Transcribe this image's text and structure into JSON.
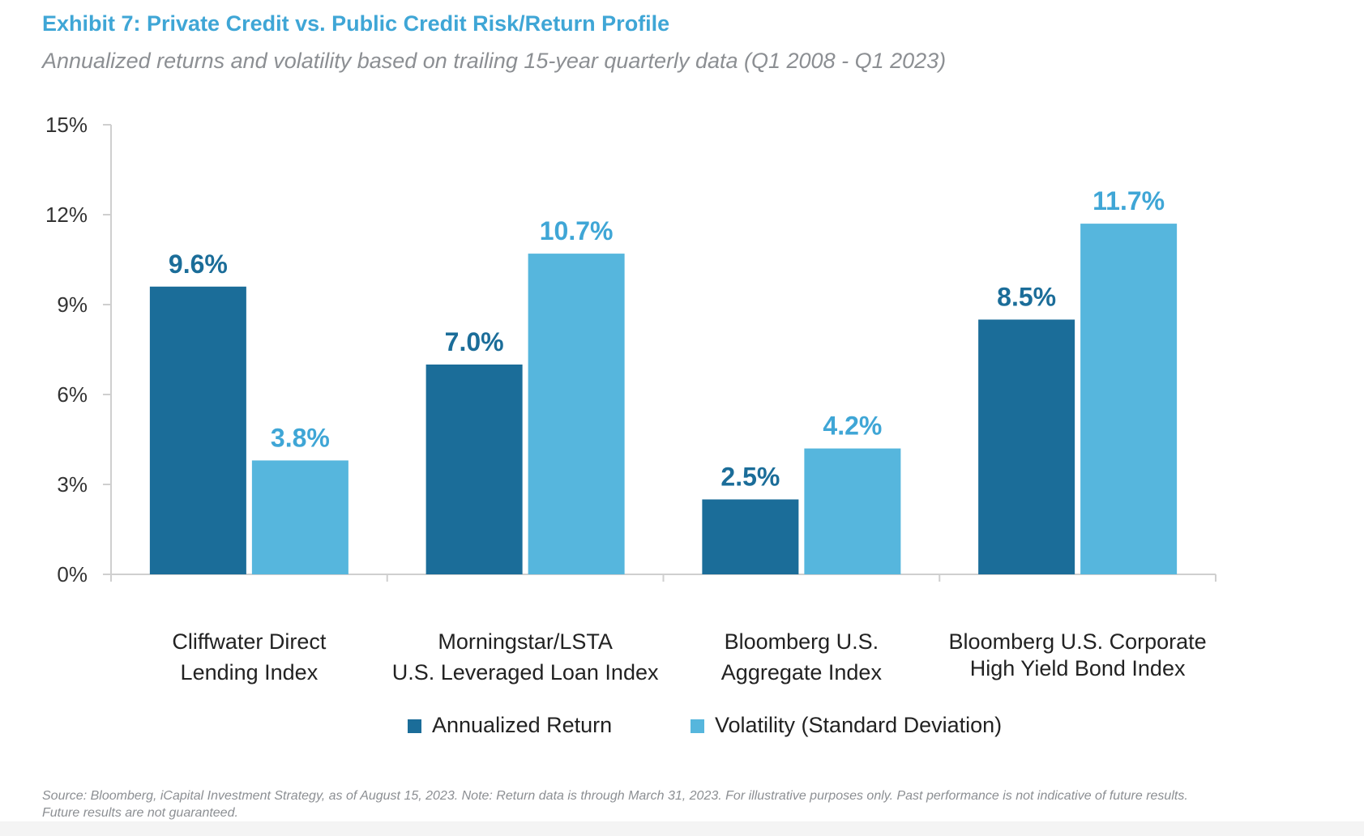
{
  "header": {
    "title": "Exhibit 7: Private Credit vs. Public Credit Risk/Return Profile",
    "subtitle": "Annualized returns and volatility based on trailing 15-year quarterly data (Q1 2008 - Q1 2023)"
  },
  "chart_data": {
    "type": "bar",
    "title": "Exhibit 7: Private Credit vs. Public Credit Risk/Return Profile",
    "subtitle": "Annualized returns and volatility based on trailing 15-year quarterly data (Q1 2008 - Q1 2023)",
    "categories": [
      [
        "Cliffwater Direct",
        "Lending Index"
      ],
      [
        "Morningstar/LSTA",
        "U.S. Leveraged Loan Index"
      ],
      [
        "Bloomberg U.S.",
        "Aggregate Index"
      ],
      [
        "Bloomberg U.S. Corporate",
        "High Yield Bond Index"
      ]
    ],
    "series": [
      {
        "name": "Annualized Return",
        "color": "#1b6d99",
        "labelColor": "#1b6d99",
        "values": [
          9.6,
          7.0,
          2.5,
          8.5
        ]
      },
      {
        "name": "Volatility (Standard Deviation)",
        "color": "#56b6dd",
        "labelColor": "#3fa6d6",
        "values": [
          3.8,
          10.7,
          4.2,
          11.7
        ]
      }
    ],
    "ylim": [
      0,
      15
    ],
    "yticks": [
      0,
      3,
      6,
      9,
      12,
      15
    ],
    "ytick_labels": [
      "0%",
      "3%",
      "6%",
      "9%",
      "12%",
      "15%"
    ],
    "value_labels": [
      [
        "9.6%",
        "7.0%",
        "2.5%",
        "8.5%"
      ],
      [
        "3.8%",
        "10.7%",
        "4.2%",
        "11.7%"
      ]
    ],
    "xlabel": "",
    "ylabel": "",
    "legend": "bottom-center",
    "grid": false
  },
  "footer": {
    "source_line1": "Source: Bloomberg, iCapital Investment Strategy, as of August 15, 2023. Note: Return data is through March 31, 2023. For illustrative purposes only. Past performance is not indicative of future results.",
    "source_line2": "Future results are not guaranteed."
  },
  "colors": {
    "title": "#3fa6d6",
    "axis": "#cfcfcf"
  }
}
